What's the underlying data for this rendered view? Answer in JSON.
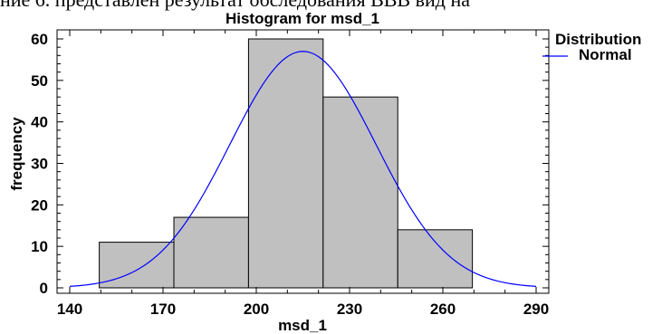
{
  "header_text": "ние 6. представлен результат обследования ВВВ вид на",
  "chart_data": {
    "type": "bar",
    "title": "Histogram for msd_1",
    "xlabel": "msd_1",
    "ylabel": "frequency",
    "xlim": [
      140,
      290
    ],
    "ylim": [
      0,
      62
    ],
    "xticks": [
      140,
      170,
      200,
      230,
      260,
      290
    ],
    "yticks": [
      0,
      10,
      20,
      30,
      40,
      50,
      60
    ],
    "bins": [
      {
        "from": 149.5,
        "to": 173.5,
        "count": 11
      },
      {
        "from": 173.5,
        "to": 197.5,
        "count": 17
      },
      {
        "from": 197.5,
        "to": 221.5,
        "count": 60
      },
      {
        "from": 221.5,
        "to": 245.5,
        "count": 46
      },
      {
        "from": 245.5,
        "to": 269.5,
        "count": 14
      }
    ],
    "normal_curve": {
      "mean": 215,
      "sd": 23.5,
      "peak": 57,
      "x_range": [
        140,
        290
      ]
    },
    "legend": {
      "title": "Distribution",
      "entries": [
        "Normal"
      ],
      "position": "top-right"
    },
    "bar_color": "#c0c0c0",
    "curve_color": "#0000ff"
  }
}
